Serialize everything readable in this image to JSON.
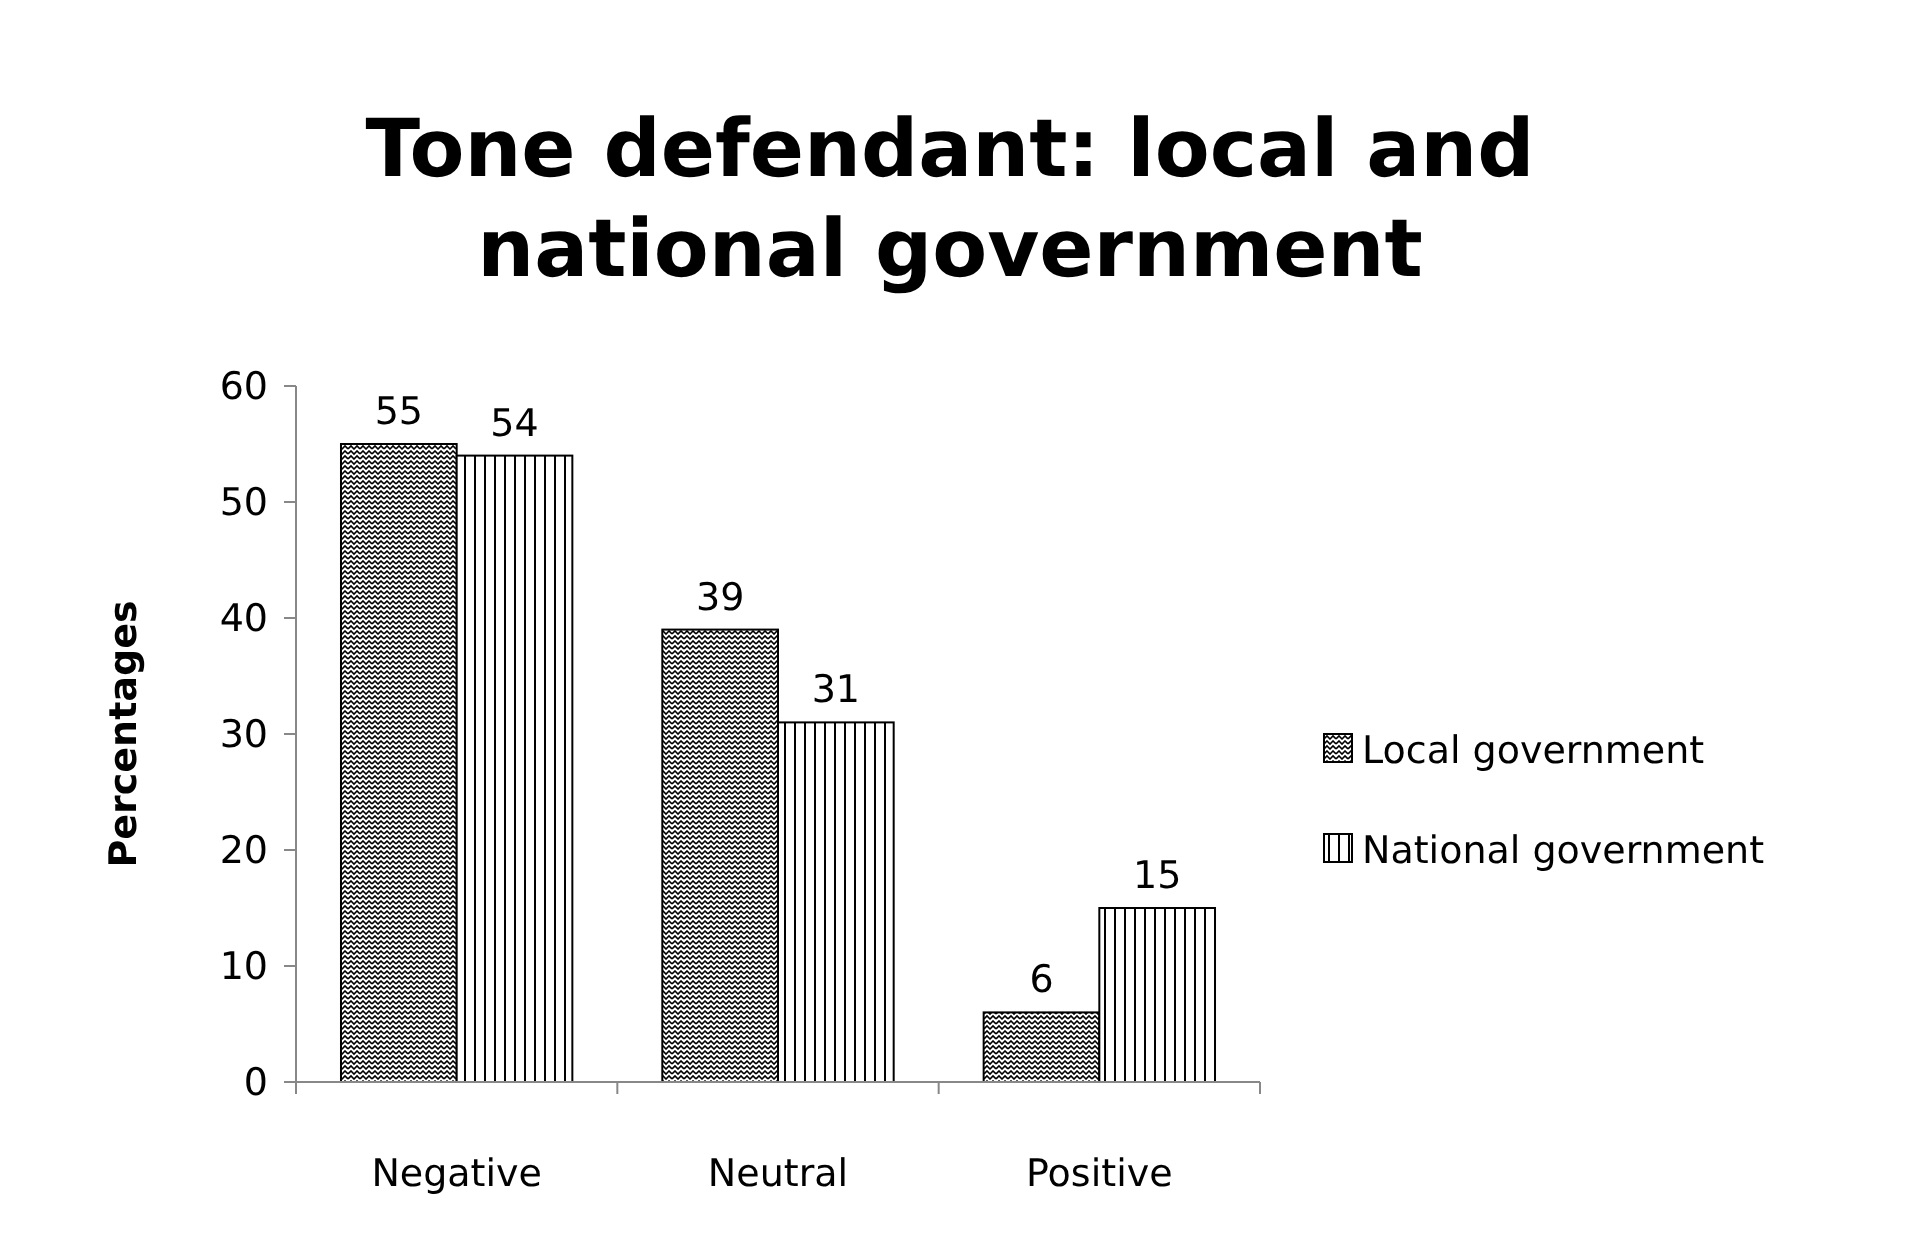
{
  "chart_data": {
    "type": "bar",
    "title": "Tone defendant: local and national government",
    "ylabel": "Percentages",
    "categories": [
      "Negative",
      "Neutral",
      "Positive"
    ],
    "series": [
      {
        "name": "Local government",
        "color": "#000000",
        "values": [
          55,
          39,
          6
        ]
      },
      {
        "name": "National government",
        "color": "#000000",
        "values": [
          54,
          31,
          15
        ]
      }
    ],
    "ylim": [
      0,
      60
    ],
    "yticks": [
      0,
      10,
      20,
      30,
      40,
      50,
      60
    ],
    "grid": false,
    "legend": "right",
    "data_labels": true
  }
}
